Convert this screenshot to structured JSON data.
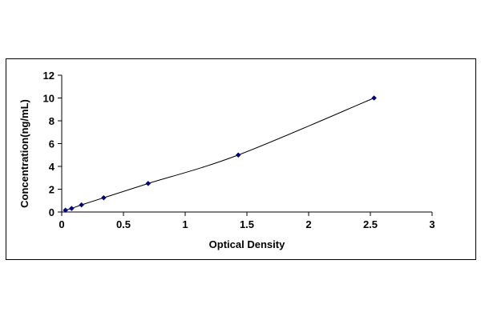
{
  "chart_data": {
    "type": "scatter",
    "title": "",
    "xlabel": "Optical Density",
    "ylabel": "Concentration(ng/mL)",
    "xlim": [
      0,
      3
    ],
    "ylim": [
      0,
      12
    ],
    "x_ticks": [
      0,
      0.5,
      1,
      1.5,
      2,
      2.5,
      3
    ],
    "x_tick_labels": [
      "0",
      "0.5",
      "1",
      "1.5",
      "2",
      "2.5",
      "3"
    ],
    "y_ticks": [
      0,
      2,
      4,
      6,
      8,
      10,
      12
    ],
    "y_tick_labels": [
      "0",
      "2",
      "4",
      "6",
      "8",
      "10",
      "12"
    ],
    "grid": false,
    "legend": "none",
    "series": [
      {
        "x": [
          0.03,
          0.08,
          0.16,
          0.34,
          0.7,
          1.43,
          2.53
        ],
        "y": [
          0.156,
          0.312,
          0.625,
          1.25,
          2.5,
          5,
          10
        ],
        "marker": "diamond",
        "trendline": "smooth",
        "color": "#000080"
      }
    ]
  }
}
